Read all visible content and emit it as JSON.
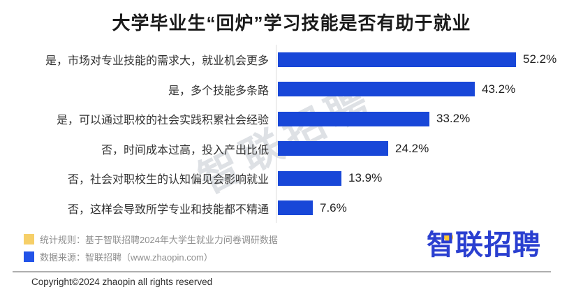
{
  "title": "大学毕业生“回炉”学习技能是否有助于就业",
  "watermark": "智联招聘",
  "chart_data": {
    "type": "bar",
    "orientation": "horizontal",
    "title": "大学毕业生“回炉”学习技能是否有助于就业",
    "categories": [
      "是，市场对专业技能的需求大，就业机会更多",
      "是，多个技能多条路",
      "是，可以通过职校的社会实践积累社会经验",
      "否，时间成本过高，投入产出比低",
      "否，社会对职校生的认知偏见会影响就业",
      "否，这样会导致所学专业和技能都不精通"
    ],
    "values": [
      52.2,
      43.2,
      33.2,
      24.2,
      13.9,
      7.6
    ],
    "value_labels": [
      "52.2%",
      "43.2%",
      "33.2%",
      "24.2%",
      "13.9%",
      "7.6%"
    ],
    "xlabel": "",
    "ylabel": "",
    "xlim": [
      0,
      55
    ],
    "grid": false,
    "legend_position": "none",
    "bar_color": "#1847d8"
  },
  "footer": {
    "legend": [
      {
        "swatch_color": "#f6cf68",
        "label": "统计规则：基于智联招聘2024年大学生就业力问卷调研数据"
      },
      {
        "swatch_color": "#2253e8",
        "label": "数据来源：智联招聘（www.zhaopin.com）"
      }
    ],
    "logo_text": "智联招聘",
    "copyright": "Copyright©2024 zhaopin all rights reserved"
  },
  "colors": {
    "bar_blue": "#1847d8",
    "legend_yellow": "#f6cf68",
    "legend_blue": "#2253e8",
    "logo_blue": "#2a3fd0",
    "logo_dot_yellow": "#ffc62e",
    "title_text": "#1a1a1a",
    "label_text": "#333333",
    "footer_text": "#8f8f8f",
    "background": "#ffffff"
  }
}
